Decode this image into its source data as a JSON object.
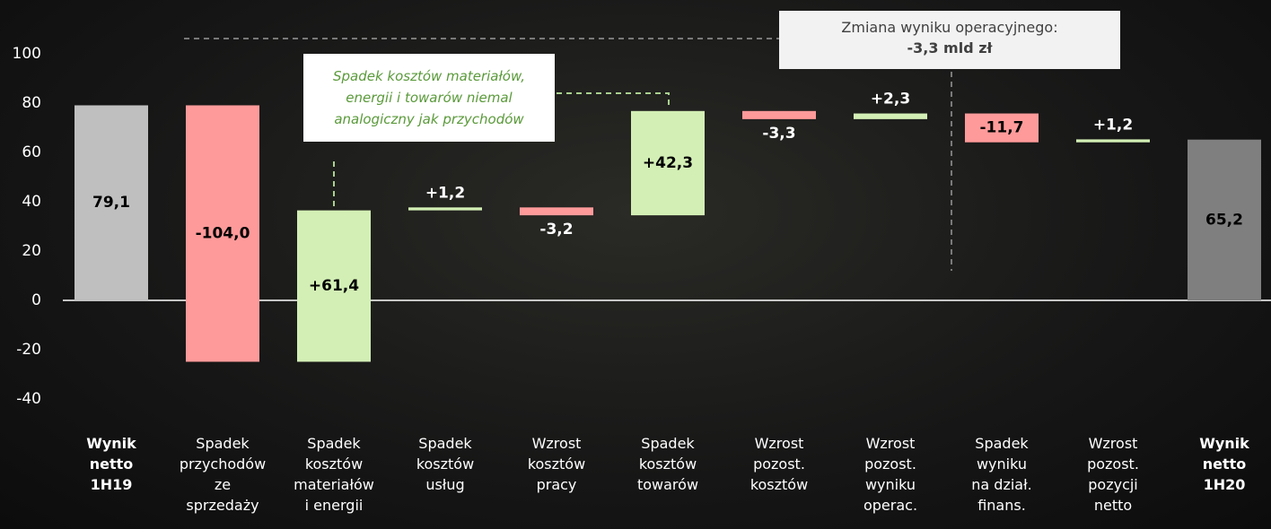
{
  "chart_data": {
    "type": "waterfall",
    "categories": [
      "Wynik\nnetto\n1H19",
      "Spadek\nprzychodów\nze\nsprzedaży",
      "Spadek\nkosztów\nmateriałów\ni energii",
      "Spadek\nkosztów\nusług",
      "Wzrost\nkosztów\npracy",
      "Spadek\nkosztów\ntowarów",
      "Wzrost\npozost.\nkosztów",
      "Wzrost\npozost.\nwyniku\noperac.",
      "Spadek\nwyniku\nna dział.\nfinans.",
      "Wzrost\npozost.\npozycji\nnetto",
      "Wynik\nnetto\n1H20"
    ],
    "values": [
      79.1,
      -104.0,
      61.4,
      1.2,
      -3.2,
      42.3,
      -3.3,
      2.3,
      -11.7,
      1.2,
      65.2
    ],
    "value_labels": [
      "79,1",
      "-104,0",
      "+61,4",
      "+1,2",
      "-3,2",
      "+42,3",
      "-3,3",
      "+2,3",
      "-11,7",
      "+1,2",
      "65,2"
    ],
    "totals": [
      true,
      false,
      false,
      false,
      false,
      false,
      false,
      false,
      false,
      false,
      true
    ],
    "colors": [
      "#bfbfbf",
      "#ff9a9a",
      "#d3efb5",
      "#d3efb5",
      "#ff9a9a",
      "#d3efb5",
      "#ff9a9a",
      "#d3efb5",
      "#ff9a9a",
      "#d3efb5",
      "#7f7f7f"
    ],
    "ylim": [
      -40,
      100
    ],
    "yticks": [
      -40,
      -20,
      0,
      20,
      40,
      60,
      80,
      100
    ],
    "annotations": {
      "box_title": "Zmiana wyniku operacyjnego:",
      "box_value": "-3,3 mld zł",
      "note": "Spadek kosztów materiałów,\nenergii i towarów niemal\nanalogiczny jak przychodów"
    }
  }
}
